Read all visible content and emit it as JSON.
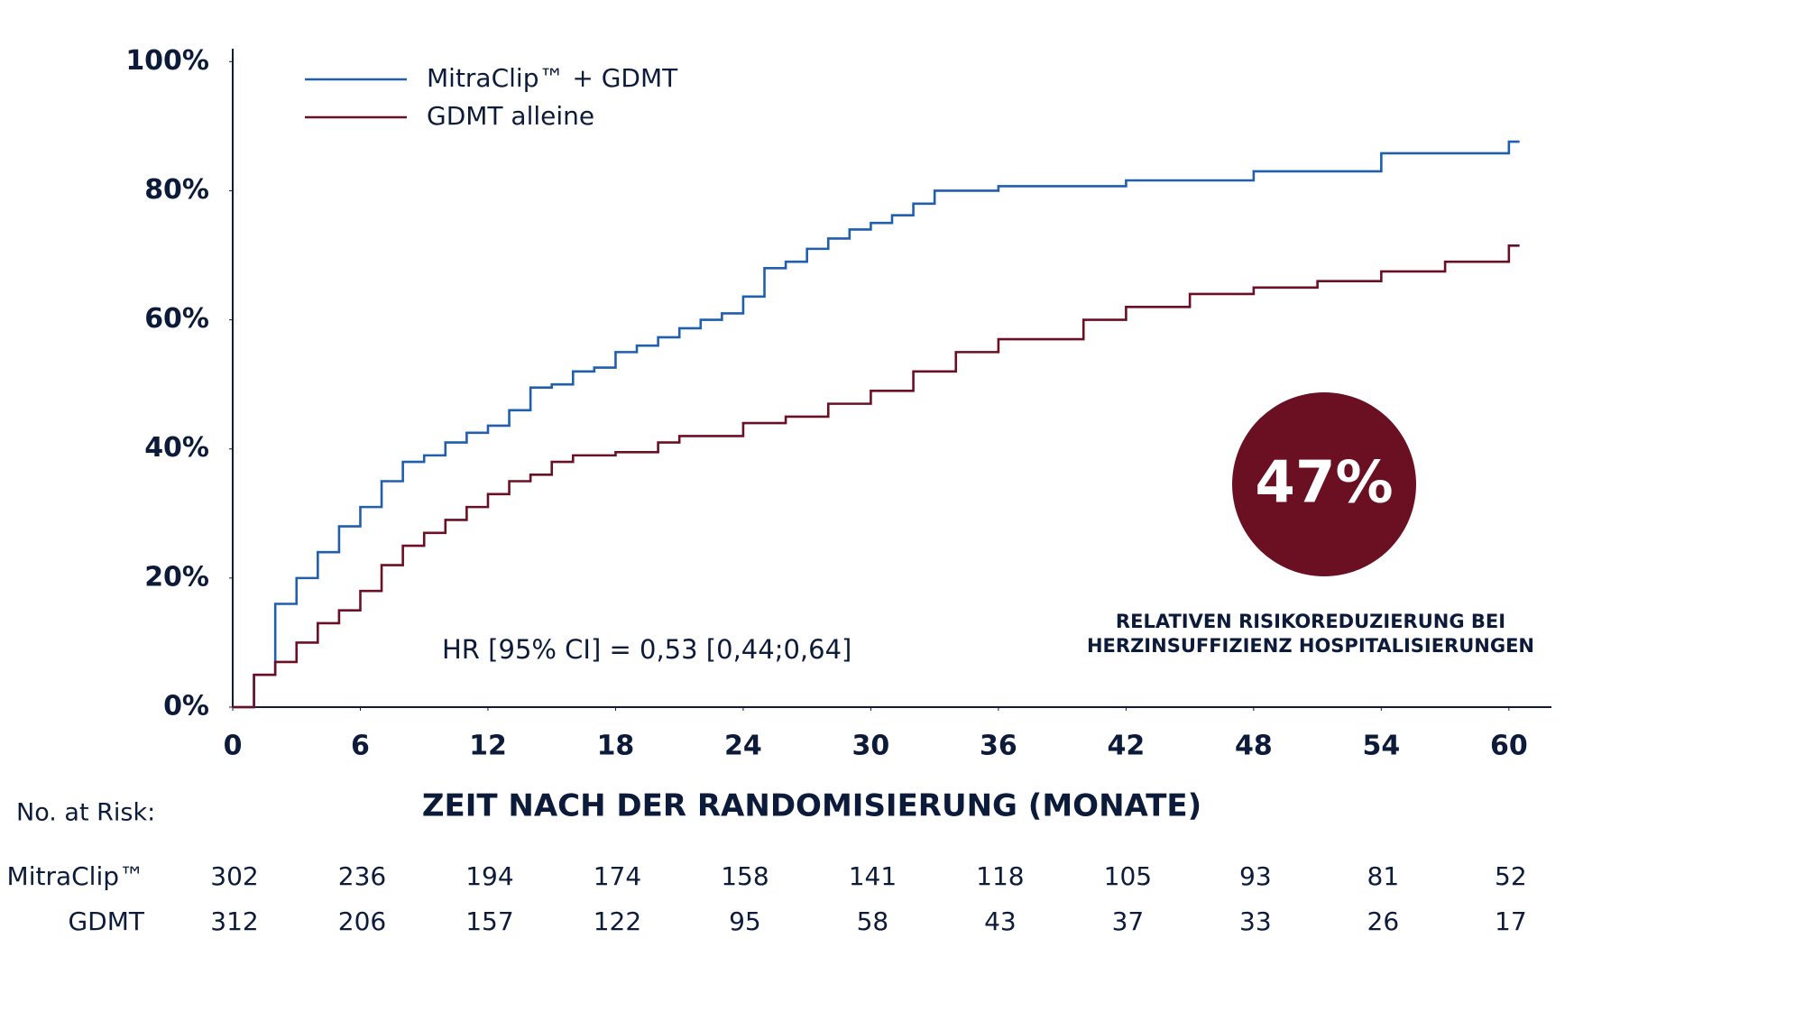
{
  "chart_data": {
    "type": "line",
    "step": true,
    "x_label": "ZEIT NACH DER RANDOMISIERUNG (MONATE)",
    "xlim": [
      0,
      62
    ],
    "xticks": [
      0,
      6,
      12,
      18,
      24,
      30,
      36,
      42,
      48,
      54,
      60
    ],
    "ylim": [
      0,
      102
    ],
    "yticks": [
      {
        "value": 0,
        "label": "0%"
      },
      {
        "value": 20,
        "label": "20%"
      },
      {
        "value": 40,
        "label": "40%"
      },
      {
        "value": 60,
        "label": "60%"
      },
      {
        "value": 80,
        "label": "80%"
      },
      {
        "value": 100,
        "label": "100%"
      }
    ],
    "grid": false,
    "legend": "top-left",
    "series": [
      {
        "name": "MitraClip™ + GDMT",
        "color": "#1f5fae",
        "x": [
          0,
          1,
          2,
          3,
          4,
          5,
          6,
          7,
          8,
          9,
          10,
          11,
          12,
          13,
          14,
          15,
          16,
          17,
          18,
          19,
          20,
          21,
          22,
          23,
          24,
          25,
          26,
          27,
          28,
          29,
          30,
          31,
          32,
          33,
          36,
          42,
          48,
          54,
          60,
          60.5
        ],
        "values": [
          0,
          5,
          16,
          20,
          24,
          28,
          31,
          35,
          38,
          39,
          41,
          42.5,
          43.6,
          46,
          49.5,
          50,
          52,
          52.6,
          55,
          56,
          57.3,
          58.7,
          60,
          61,
          63.6,
          68,
          69,
          71,
          72.6,
          74,
          75,
          76.2,
          78,
          80,
          80.7,
          81.6,
          83,
          85.8,
          87.6,
          87.6
        ]
      },
      {
        "name": "GDMT alleine",
        "color": "#6b1024",
        "x": [
          0,
          1,
          2,
          3,
          4,
          5,
          6,
          7,
          8,
          9,
          10,
          11,
          12,
          13,
          14,
          15,
          16,
          18,
          20,
          21,
          24,
          26,
          28,
          30,
          32,
          34,
          36,
          40,
          42,
          45,
          48,
          51,
          54,
          57,
          60,
          60.5
        ],
        "values": [
          0,
          5,
          7,
          10,
          13,
          15,
          18,
          22,
          25,
          27,
          29,
          31,
          33,
          35,
          36,
          38,
          39,
          39.5,
          41,
          42,
          44,
          45,
          47,
          49,
          52,
          55,
          57,
          60,
          62,
          64,
          65,
          66,
          67.5,
          69,
          71.5,
          71.5
        ]
      }
    ],
    "annotations": {
      "hr": "HR [95% CI] = 0,53 [0,44;0,64]",
      "badge": "47%",
      "caption": [
        "RELATIVEN RISIKOREDUZIERUNG BEI",
        "HERZINSUFFIZIENZ HOSPITALISIERUNGEN"
      ]
    },
    "risk_table": {
      "title": "No. at Risk:",
      "rows": [
        {
          "label": "MitraClip™",
          "values": [
            302,
            236,
            194,
            174,
            158,
            141,
            118,
            105,
            93,
            81,
            52
          ]
        },
        {
          "label": "GDMT",
          "values": [
            312,
            206,
            157,
            122,
            95,
            58,
            43,
            37,
            33,
            26,
            17
          ]
        }
      ]
    }
  }
}
